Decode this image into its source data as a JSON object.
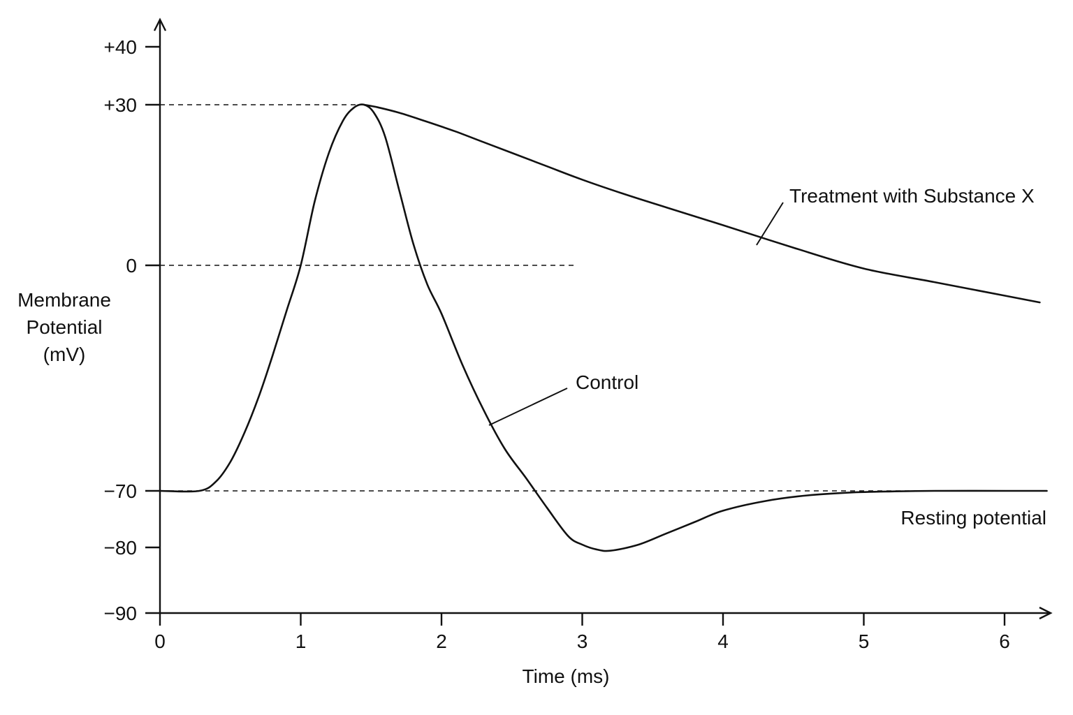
{
  "chart_data": {
    "type": "line",
    "title": "",
    "xlabel": "Time (ms)",
    "ylabel": "Membrane\nPotential\n(mV)",
    "xlim": [
      0,
      6.3
    ],
    "ylim": [
      -90,
      45
    ],
    "grid": false,
    "x_ticks": [
      {
        "value": 0,
        "label": "0"
      },
      {
        "value": 1,
        "label": "1"
      },
      {
        "value": 2,
        "label": "2"
      },
      {
        "value": 3,
        "label": "3"
      },
      {
        "value": 4,
        "label": "4"
      },
      {
        "value": 5,
        "label": "5"
      },
      {
        "value": 6,
        "label": "6"
      }
    ],
    "y_ticks": [
      {
        "value": 40,
        "label": "+40"
      },
      {
        "value": 30,
        "label": "+30"
      },
      {
        "value": 0,
        "label": "0"
      },
      {
        "value": -70,
        "label": "−70"
      },
      {
        "value": -80,
        "label": "−80"
      },
      {
        "value": -90,
        "label": "−90"
      }
    ],
    "reference_lines": [
      {
        "name": "peak",
        "y": 30,
        "x_range": [
          0,
          1.45
        ]
      },
      {
        "name": "zero",
        "y": 0,
        "x_range": [
          0,
          2.95
        ]
      },
      {
        "name": "resting",
        "y": -70,
        "x_range": [
          0,
          6.3
        ]
      }
    ],
    "series": [
      {
        "name": "Control",
        "x": [
          0,
          0.28,
          0.4,
          0.5,
          0.6,
          0.7,
          0.8,
          0.9,
          1.0,
          1.1,
          1.2,
          1.3,
          1.38,
          1.45,
          1.52,
          1.6,
          1.7,
          1.8,
          1.9,
          2.0,
          2.15,
          2.3,
          2.45,
          2.6,
          2.75,
          2.9,
          3.0,
          3.1,
          3.2,
          3.4,
          3.6,
          3.8,
          4.0,
          4.3,
          4.6,
          4.9,
          5.2,
          5.5,
          6.0,
          6.3
        ],
        "values": [
          -70,
          -70,
          -67,
          -61,
          -52,
          -41,
          -28,
          -14,
          0,
          12,
          21,
          27,
          29.5,
          30,
          28.5,
          24,
          14,
          4,
          -6,
          -15,
          -31,
          -45,
          -57,
          -66,
          -73,
          -78,
          -79.5,
          -80.3,
          -80.5,
          -79.5,
          -77.5,
          -75.5,
          -73.5,
          -71.8,
          -70.8,
          -70.3,
          -70.1,
          -70,
          -70,
          -70
        ]
      },
      {
        "name": "Treatment with Substance X",
        "x": [
          1.45,
          1.55,
          1.7,
          1.9,
          2.1,
          2.3,
          2.5,
          2.75,
          3.0,
          3.3,
          3.6,
          4.0,
          4.5,
          5.0,
          5.5,
          6.0,
          6.25
        ],
        "values": [
          30,
          29.5,
          28.5,
          26.8,
          25,
          23,
          21,
          18.5,
          16,
          13.3,
          10.8,
          7.5,
          3.3,
          -1,
          -5.2,
          -9.4,
          -11.5
        ]
      }
    ],
    "annotations": [
      {
        "name": "resting-potential-label",
        "text": "Resting potential"
      }
    ]
  }
}
